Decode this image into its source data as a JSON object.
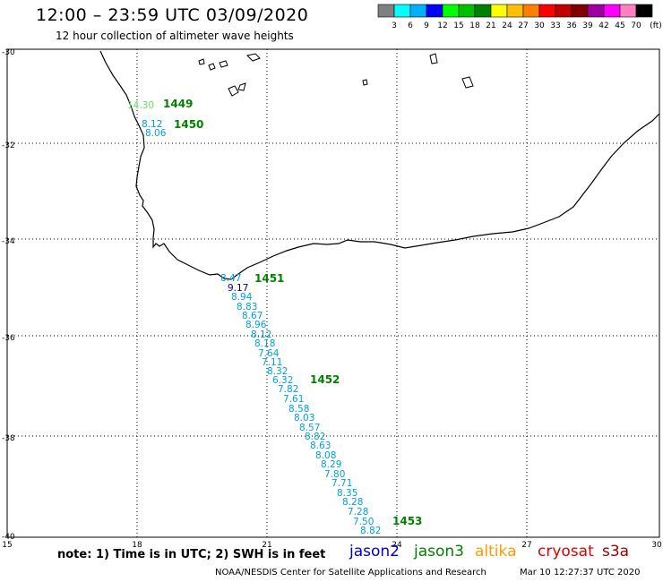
{
  "title": "12:00 – 23:59 UTC 03/09/2020",
  "subtitle": "12 hour collection of altimeter wave heights",
  "legend": {
    "colors": [
      "#808080",
      "#00ffff",
      "#00b0ff",
      "#0000ff",
      "#00ff00",
      "#00c000",
      "#008000",
      "#ffff00",
      "#ffc000",
      "#ff8000",
      "#ff0000",
      "#c00000",
      "#800000",
      "#a000a0",
      "#ff00ff",
      "#ff80c0",
      "#000000"
    ],
    "labels": [
      "3",
      "6",
      "9",
      "12",
      "15",
      "18",
      "21",
      "24",
      "27",
      "30",
      "33",
      "36",
      "39",
      "42",
      "45",
      "70",
      "(ft)"
    ]
  },
  "axes": {
    "lat_labels": [
      "-30",
      "-32",
      "-34",
      "-36",
      "-38",
      "-40"
    ],
    "lon_labels": [
      "15",
      "18",
      "21",
      "24",
      "27",
      "30"
    ]
  },
  "times": [
    {
      "label": "1449",
      "color": "#008000"
    },
    {
      "label": "1450",
      "color": "#008000"
    },
    {
      "label": "1451",
      "color": "#008000"
    },
    {
      "label": "1452",
      "color": "#008000"
    },
    {
      "label": "1453",
      "color": "#008000"
    }
  ],
  "swh_values": [
    {
      "text": "14.30",
      "color": "#60e060"
    },
    {
      "text": "8.12",
      "color": "#00a0e0"
    },
    {
      "text": "8.06",
      "color": "#00a0e0"
    },
    {
      "text": "8.47",
      "color": "#00a0e0"
    },
    {
      "text": "9.17",
      "color": "#0000b0"
    },
    {
      "text": "8.94",
      "color": "#00a0e0"
    },
    {
      "text": "8.83",
      "color": "#00a0e0"
    },
    {
      "text": "8.67",
      "color": "#00a0e0"
    },
    {
      "text": "8.96",
      "color": "#00a0e0"
    },
    {
      "text": "8.12",
      "color": "#00a0e0"
    },
    {
      "text": "8.18",
      "color": "#00a0e0"
    },
    {
      "text": "7.64",
      "color": "#00a0e0"
    },
    {
      "text": "7.11",
      "color": "#00a0e0"
    },
    {
      "text": "8.32",
      "color": "#00a0e0"
    },
    {
      "text": "6.32",
      "color": "#00a0e0"
    },
    {
      "text": "7.82",
      "color": "#00a0e0"
    },
    {
      "text": "7.61",
      "color": "#00a0e0"
    },
    {
      "text": "8.58",
      "color": "#00a0e0"
    },
    {
      "text": "8.03",
      "color": "#00a0e0"
    },
    {
      "text": "8.57",
      "color": "#00a0e0"
    },
    {
      "text": "8.82",
      "color": "#00a0e0"
    },
    {
      "text": "8.63",
      "color": "#00a0e0"
    },
    {
      "text": "8.08",
      "color": "#00a0e0"
    },
    {
      "text": "8.29",
      "color": "#00a0e0"
    },
    {
      "text": "7.80",
      "color": "#00a0e0"
    },
    {
      "text": "7.71",
      "color": "#00a0e0"
    },
    {
      "text": "8.35",
      "color": "#00a0e0"
    },
    {
      "text": "8.28",
      "color": "#00a0e0"
    },
    {
      "text": "7.28",
      "color": "#00a0e0"
    },
    {
      "text": "7.50",
      "color": "#00a0e0"
    },
    {
      "text": "8.82",
      "color": "#00a0e0"
    }
  ],
  "note": "note:  1) Time is in UTC;  2) SWH is in feet",
  "satellites": [
    {
      "name": "jason2",
      "color": "#0000cc"
    },
    {
      "name": "jason3",
      "color": "#008000"
    },
    {
      "name": "altika",
      "color": "#ff9900"
    },
    {
      "name": "cryosat",
      "color": "#dd0000"
    },
    {
      "name": "s3a",
      "color": "#990000"
    }
  ],
  "credit": "NOAA/NESDIS Center for Satellite Applications and Research",
  "timestamp": "Mar 10 12:27:37 UTC 2020"
}
